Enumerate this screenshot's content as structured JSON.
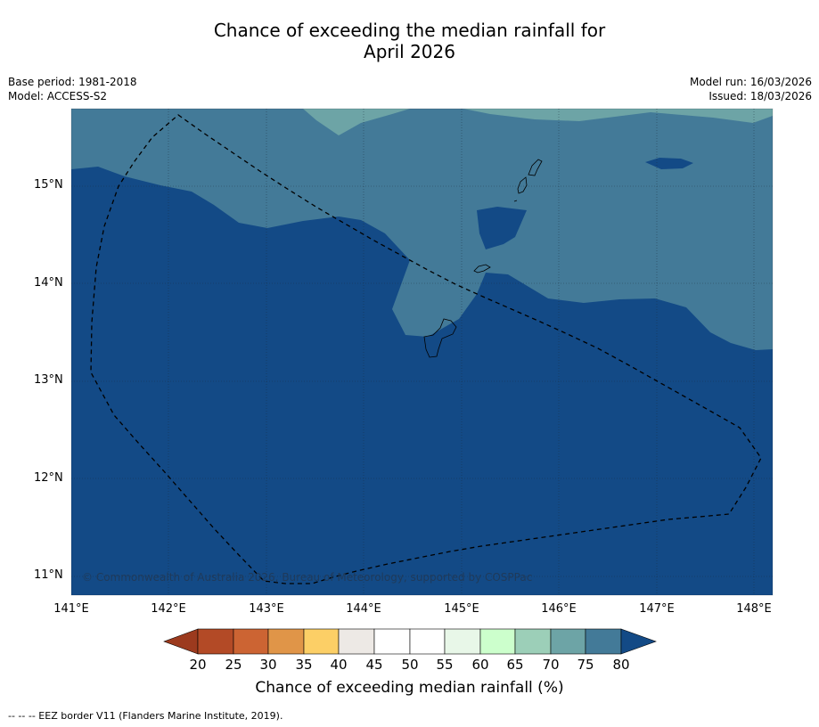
{
  "header": {
    "title_line1": "Chance of exceeding the median rainfall for",
    "title_line2": "April 2026",
    "base_period": "Base period: 1981-2018",
    "model": "Model: ACCESS-S2",
    "model_run": "Model run: 16/03/2026",
    "issued": "Issued: 18/03/2026"
  },
  "map": {
    "copyright": "© Commonwealth of Australia 2026, Bureau of Meteorology, supported by COSPPac",
    "lat_labels": [
      "15°N",
      "14°N",
      "13°N",
      "12°N",
      "11°N"
    ],
    "lon_labels": [
      "141°E",
      "142°E",
      "143°E",
      "144°E",
      "145°E",
      "146°E",
      "147°E",
      "148°E"
    ]
  },
  "colorbar": {
    "title": "Chance of exceeding median rainfall (%)",
    "ticks": [
      "20",
      "25",
      "30",
      "35",
      "40",
      "45",
      "50",
      "55",
      "60",
      "65",
      "70",
      "75",
      "80"
    ],
    "colors": {
      "below_20": "#9c3a1e",
      "c20_25": "#b34a26",
      "c25_30": "#cc6433",
      "c30_35": "#e09548",
      "c35_40": "#fccf66",
      "c40_45": "#ede9e5",
      "c45_50": "#ffffff",
      "c50_55": "#ffffff",
      "c55_60": "#e8f7e8",
      "c60_65": "#ccffcc",
      "c65_70": "#9ccfb8",
      "c70_75": "#6da4a6",
      "c75_80": "#437a98",
      "above_80": "#134a86"
    }
  },
  "legend": {
    "eez": "--  --  -- EEZ border V11 (Flanders Marine Institute, 2019)."
  }
}
